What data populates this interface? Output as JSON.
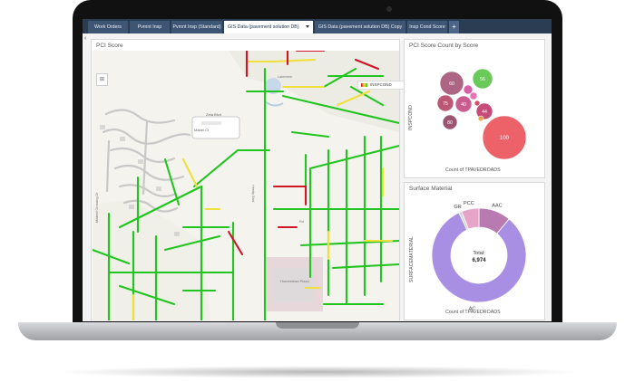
{
  "tabs": [
    {
      "label": "Work Orders"
    },
    {
      "label": "Pvmnt Insp"
    },
    {
      "label": "Pvmnt Insp (Standard)"
    },
    {
      "label": "GIS Data (pavement solution DB)"
    },
    {
      "label": "GIS Data (pavement solution DB) Copy"
    },
    {
      "label": "Insp Cond Score"
    }
  ],
  "add_tab": "+",
  "map": {
    "title": "PCI Score",
    "legend_label": "INSPCOND",
    "labels": {
      "l1": "Zeta Blvd",
      "l2": "Mabel Ct",
      "l3": "Mildred Crossing Dr",
      "l4": "Hendy Blvd",
      "l5": "Homestead Plaza",
      "l6": "Lakeview",
      "l7": "Rd"
    },
    "road_colors": {
      "good": "#22c41f",
      "fair": "#f0e03a",
      "poor": "#cf1626"
    }
  },
  "bubble_chart": {
    "title": "PCI Score Count by Score",
    "xlabel": "Count of TPAVEDROADS",
    "ylabel": "INSPCOND",
    "chart_data": {
      "type": "scatter",
      "title": "PCI Score Count by Score",
      "xlabel": "Count of TPAVEDROADS",
      "ylabel": "INSPCOND",
      "bubbles": [
        {
          "label": "100",
          "color": "#e9464e"
        },
        {
          "label": "60",
          "color": "#9e4a6c"
        },
        {
          "label": "56",
          "color": "#4fbf3c"
        },
        {
          "label": "75",
          "color": "#b23a5e"
        },
        {
          "label": "40",
          "color": "#c1417d"
        },
        {
          "label": "44",
          "color": "#bc2c61"
        },
        {
          "label": "80",
          "color": "#8a3757"
        },
        {
          "label": "",
          "color": "#d14596"
        },
        {
          "label": "",
          "color": "#e05aa8"
        },
        {
          "label": "",
          "color": "#cc2f4d"
        },
        {
          "label": "",
          "color": "#e6a03c"
        }
      ]
    }
  },
  "donut_chart": {
    "title": "Surface Material",
    "ylabel": "SURFACEMATERIAL",
    "xlabel": "Count of TPAVEDROADS",
    "total_label": "Total:",
    "total_value": "6,974",
    "chart_data": {
      "type": "pie",
      "title": "Surface Material",
      "total": 6974,
      "slices": [
        {
          "label": "AC",
          "value": 82,
          "color": "#a98fe3"
        },
        {
          "label": "PCC",
          "value": 6,
          "color": "#e7a4c9"
        },
        {
          "label": "GR",
          "value": 1,
          "color": "#d5d5d5"
        },
        {
          "label": "AAC",
          "value": 11,
          "color": "#b97ab1"
        }
      ]
    }
  }
}
